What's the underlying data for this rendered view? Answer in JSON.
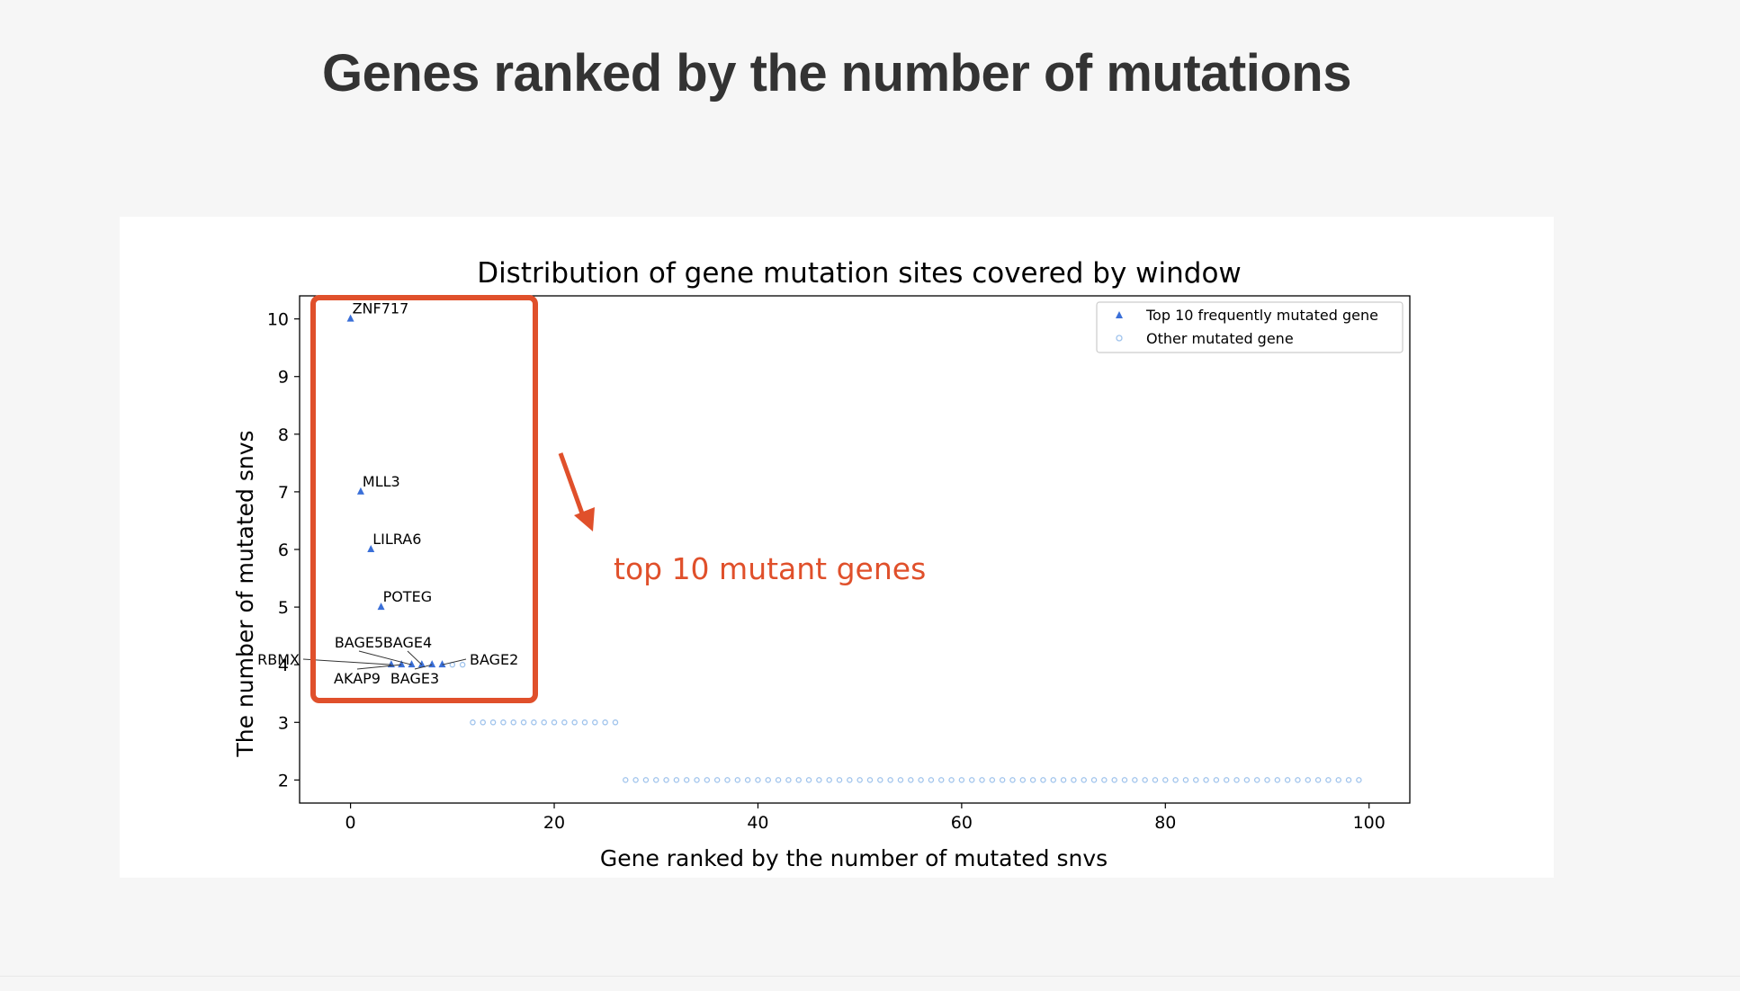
{
  "page": {
    "title": "Genes ranked by the number of mutations"
  },
  "chart_data": {
    "type": "scatter",
    "title": "Distribution of gene mutation sites covered by window",
    "xlabel": "Gene ranked by the number of mutated snvs",
    "ylabel": "The number of mutated snvs",
    "xlim": [
      -5,
      104
    ],
    "ylim": [
      1.6,
      10.4
    ],
    "xticks": [
      0,
      20,
      40,
      60,
      80,
      100
    ],
    "yticks": [
      2,
      3,
      4,
      5,
      6,
      7,
      8,
      9,
      10
    ],
    "legend_position": "top-right",
    "colors": {
      "top": "#3a6fd8",
      "other": "#9fc3ec",
      "annotation": "#e0502b"
    },
    "series": [
      {
        "name": "Top 10 frequently mutated gene",
        "marker": "triangle",
        "points": [
          {
            "x": 0,
            "y": 10,
            "label": "ZNF717"
          },
          {
            "x": 1,
            "y": 7,
            "label": "MLL3"
          },
          {
            "x": 2,
            "y": 6,
            "label": "LILRA6"
          },
          {
            "x": 3,
            "y": 5,
            "label": "POTEG"
          },
          {
            "x": 4,
            "y": 4,
            "label": "RBMX"
          },
          {
            "x": 5,
            "y": 4,
            "label": "AKAP9"
          },
          {
            "x": 6,
            "y": 4,
            "label": "BAGE5"
          },
          {
            "x": 7,
            "y": 4,
            "label": "BAGE4"
          },
          {
            "x": 8,
            "y": 4,
            "label": "BAGE3"
          },
          {
            "x": 9,
            "y": 4,
            "label": "BAGE2"
          }
        ]
      },
      {
        "name": "Other mutated gene",
        "marker": "circle",
        "groups": [
          {
            "y": 4,
            "x_from": 10,
            "x_to": 11
          },
          {
            "y": 3,
            "x_from": 12,
            "x_to": 26
          },
          {
            "y": 2,
            "x_from": 27,
            "x_to": 99
          }
        ]
      }
    ],
    "annotation": {
      "text": "top 10 mutant genes"
    }
  }
}
